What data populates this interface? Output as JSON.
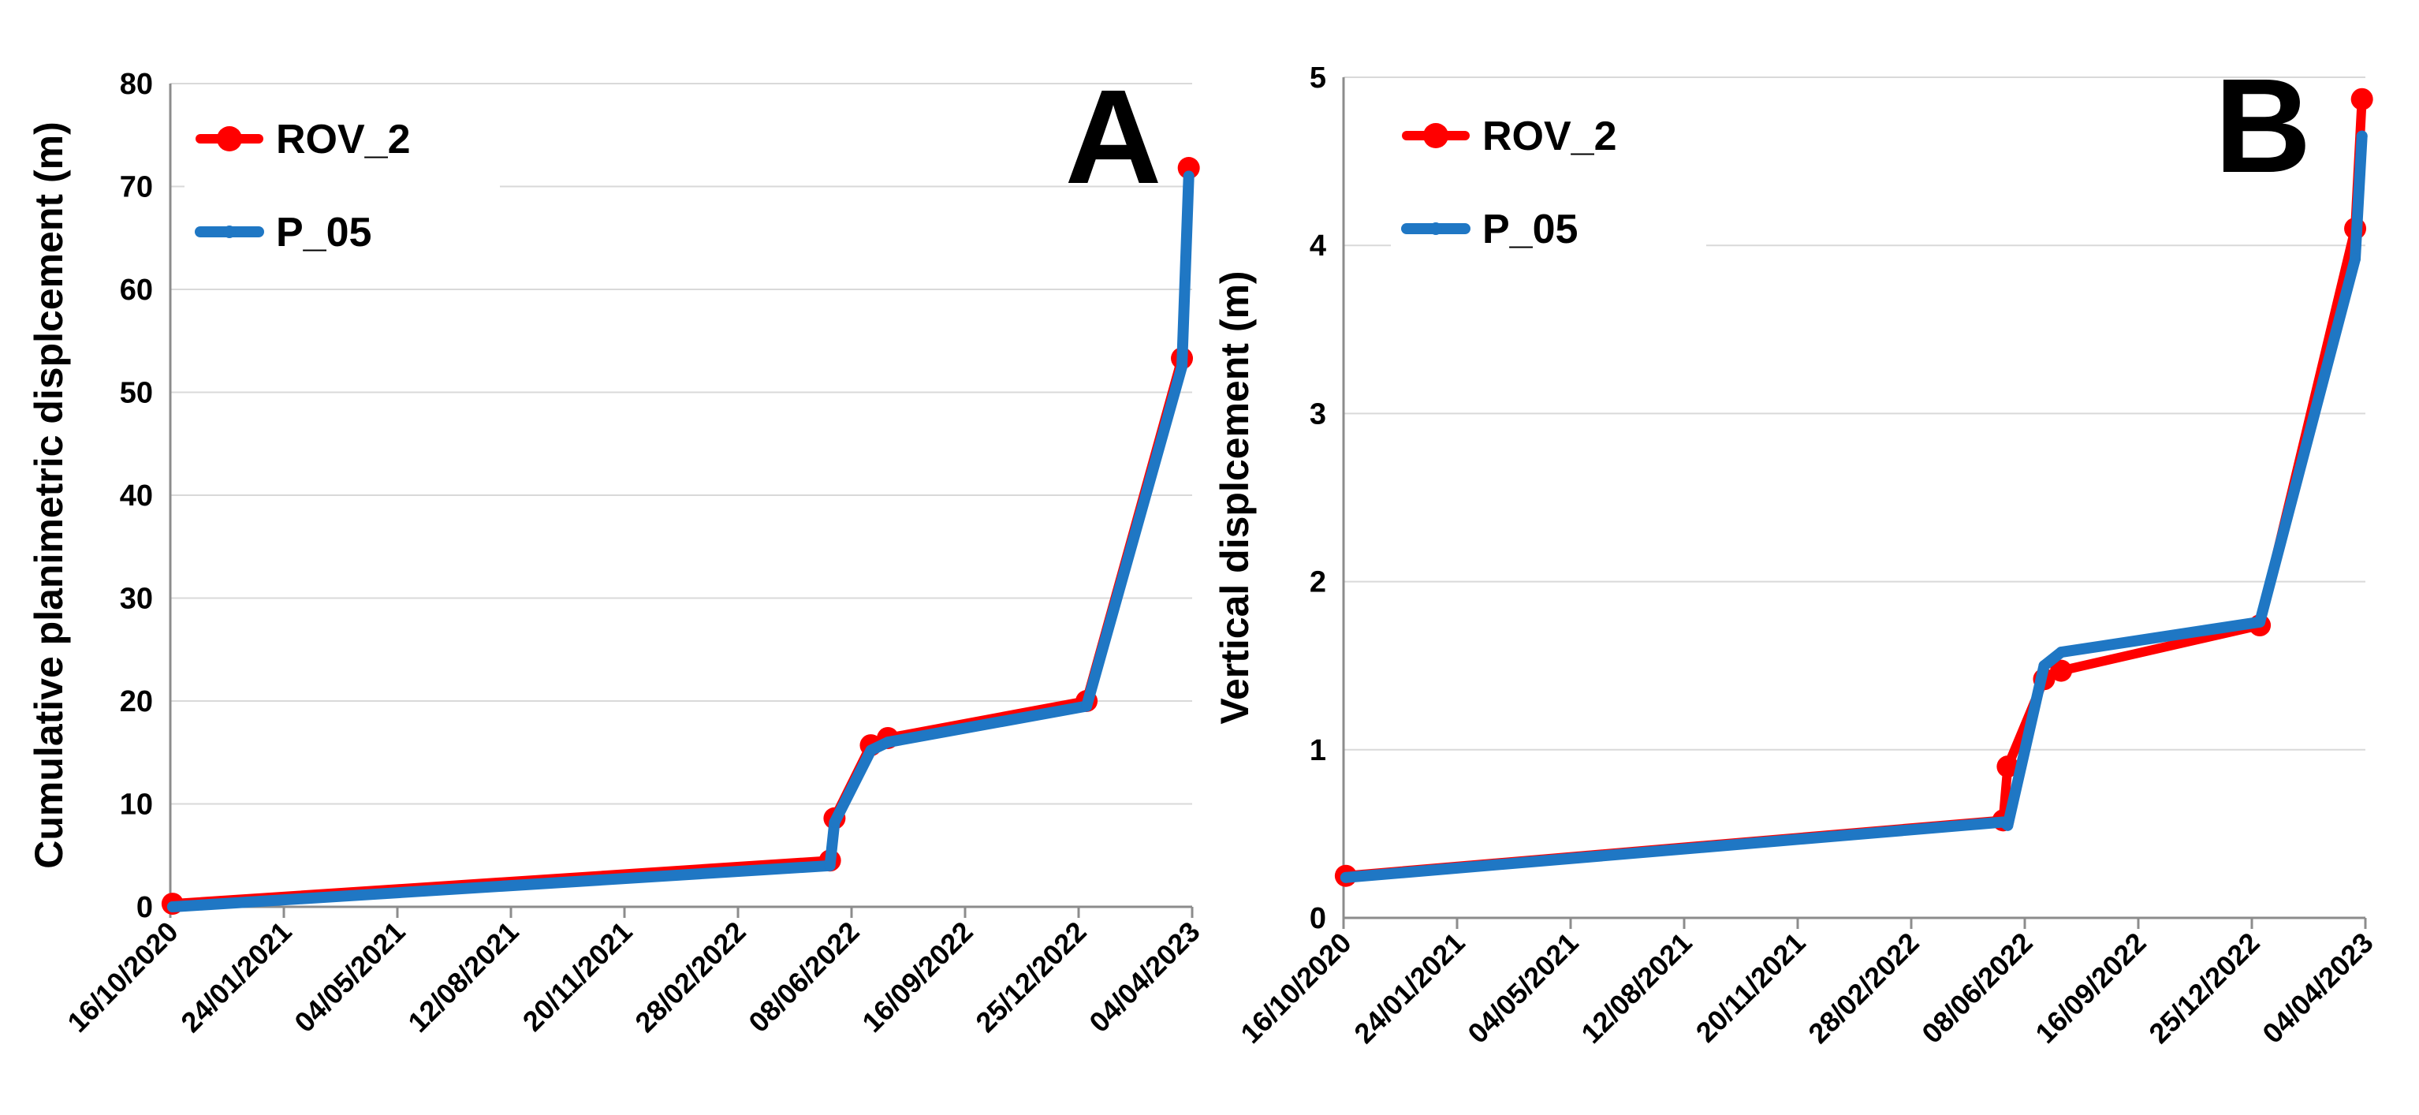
{
  "colors": {
    "ROV_2": "#ff0000",
    "P_05": "#1f77c4",
    "grid": "#d9d9d9",
    "axis": "#8c8c8c"
  },
  "chart_data": [
    {
      "type": "line",
      "panel_label": "A",
      "title": "",
      "xlabel": "",
      "ylabel": "Cumulative planimetric displcement (m)",
      "xlim": [
        "2020-10-16",
        "2023-04-04"
      ],
      "ylim": [
        0,
        80
      ],
      "y_ticks": [
        0,
        10,
        20,
        30,
        40,
        50,
        60,
        70,
        80
      ],
      "y_tick_labels": [
        "0",
        "10",
        "20",
        "30",
        "40",
        "50",
        "60",
        "70",
        "80"
      ],
      "x_ticks": [
        "2020-10-16",
        "2021-01-24",
        "2021-05-04",
        "2021-08-12",
        "2021-11-20",
        "2022-02-28",
        "2022-06-08",
        "2022-09-16",
        "2022-12-25",
        "2023-04-04"
      ],
      "x_tick_labels": [
        "16/10/2020",
        "24/01/2021",
        "04/05/2021",
        "12/08/2021",
        "20/11/2021",
        "28/02/2022",
        "08/06/2022",
        "16/09/2022",
        "25/12/2022",
        "04/04/2023"
      ],
      "grid": true,
      "legend": {
        "position": "top-left",
        "entries": [
          "ROV_2",
          "P_05"
        ]
      },
      "series": [
        {
          "name": "ROV_2",
          "color": "#ff0000",
          "marker": "large-circle",
          "x": [
            "2020-10-18",
            "2022-05-20",
            "2022-05-24",
            "2022-06-25",
            "2022-07-10",
            "2023-01-01",
            "2023-03-26",
            "2023-04-01"
          ],
          "y": [
            0.3,
            4.5,
            8.6,
            15.7,
            16.4,
            20.0,
            53.3,
            71.8
          ]
        },
        {
          "name": "P_05",
          "color": "#1f77c4",
          "marker": "small-circle",
          "x": [
            "2020-10-18",
            "2022-05-20",
            "2022-05-24",
            "2022-06-25",
            "2022-07-10",
            "2023-01-01",
            "2023-03-26",
            "2023-04-01"
          ],
          "y": [
            0.0,
            4.0,
            8.2,
            15.2,
            16.0,
            19.5,
            52.5,
            71.0
          ]
        }
      ]
    },
    {
      "type": "line",
      "panel_label": "B",
      "title": "",
      "xlabel": "",
      "ylabel": "Vertical displcement (m)",
      "xlim": [
        "2020-10-16",
        "2023-04-04"
      ],
      "ylim": [
        0,
        5
      ],
      "y_ticks": [
        0,
        1,
        2,
        3,
        4,
        5
      ],
      "y_tick_labels": [
        "0",
        "1",
        "2",
        "3",
        "4",
        "5"
      ],
      "x_ticks": [
        "2020-10-16",
        "2021-01-24",
        "2021-05-04",
        "2021-08-12",
        "2021-11-20",
        "2022-02-28",
        "2022-06-08",
        "2022-09-16",
        "2022-12-25",
        "2023-04-04"
      ],
      "x_tick_labels": [
        "16/10/2020",
        "24/01/2021",
        "04/05/2021",
        "12/08/2021",
        "20/11/2021",
        "28/02/2022",
        "08/06/2022",
        "16/09/2022",
        "25/12/2022",
        "04/04/2023"
      ],
      "grid": true,
      "legend": {
        "position": "top-left",
        "entries": [
          "ROV_2",
          "P_05"
        ]
      },
      "series": [
        {
          "name": "ROV_2",
          "color": "#ff0000",
          "marker": "large-circle",
          "x": [
            "2020-10-18",
            "2022-05-20",
            "2022-05-24",
            "2022-06-25",
            "2022-07-10",
            "2023-01-01",
            "2023-03-26",
            "2023-04-01"
          ],
          "y": [
            0.25,
            0.58,
            0.9,
            1.42,
            1.47,
            1.74,
            4.1,
            4.87
          ]
        },
        {
          "name": "P_05",
          "color": "#1f77c4",
          "marker": "small-circle",
          "x": [
            "2020-10-18",
            "2022-05-20",
            "2022-05-24",
            "2022-06-25",
            "2022-07-10",
            "2023-01-01",
            "2023-03-26",
            "2023-04-01"
          ],
          "y": [
            0.24,
            0.57,
            0.55,
            1.5,
            1.58,
            1.76,
            3.92,
            4.65
          ]
        }
      ]
    }
  ]
}
